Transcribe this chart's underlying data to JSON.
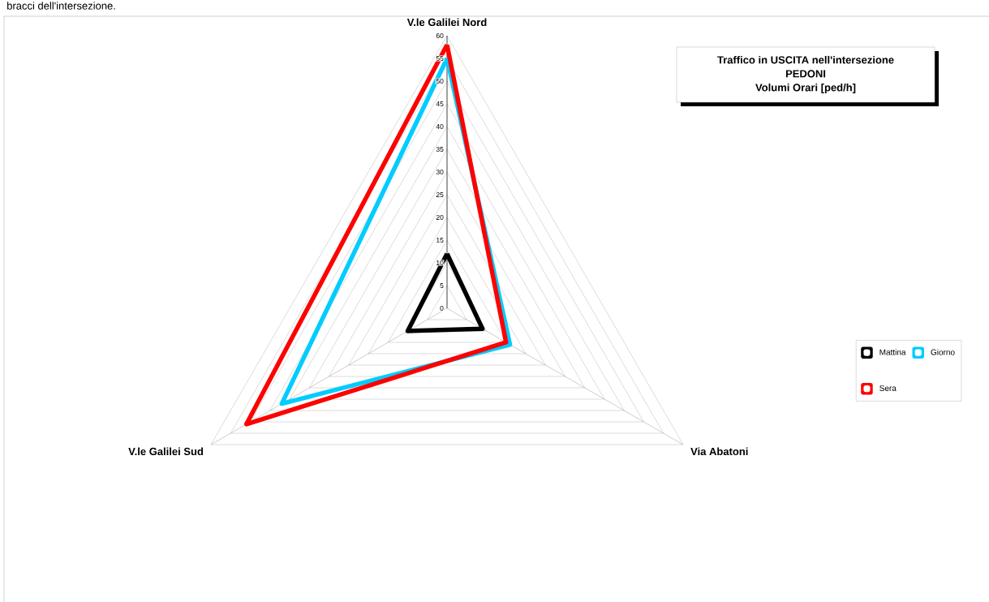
{
  "chart_data": {
    "type": "radar",
    "title": "Traffico in USCITA nell'intersezione",
    "subtitle": "PEDONI",
    "ylabel": "Volumi Orari [ped/h]",
    "annotations": [
      "bracci dell'intersezione."
    ],
    "categories": [
      "V.le Galilei Nord",
      "Via Abatoni",
      "V.le Galilei Sud"
    ],
    "series": [
      {
        "name": "Mattina",
        "color": "#000000",
        "values": [
          12,
          9,
          10
        ]
      },
      {
        "name": "Giorno",
        "color": "#00ccff",
        "values": [
          55,
          16,
          42
        ]
      },
      {
        "name": "Sera",
        "color": "#ff0000",
        "values": [
          58,
          15,
          51
        ]
      }
    ],
    "ylim": [
      0,
      60
    ],
    "yticks": [
      0,
      5,
      10,
      15,
      20,
      25,
      30,
      35,
      40,
      45,
      50,
      55,
      60
    ],
    "grid": true,
    "legend": "right",
    "marker": "none",
    "line_style": "solid"
  }
}
